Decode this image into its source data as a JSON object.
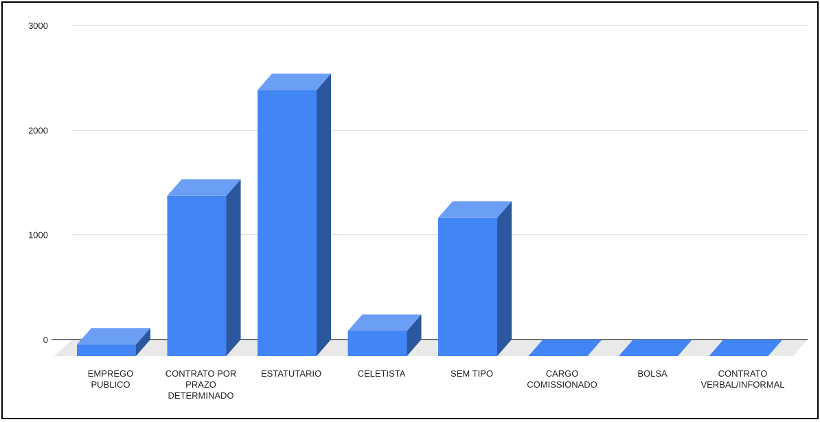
{
  "chart_data": {
    "type": "bar",
    "style": "3d",
    "categories": [
      [
        "EMPREGO",
        "PUBLICO"
      ],
      [
        "CONTRATO POR",
        "PRAZO",
        "DETERMINADO"
      ],
      [
        "ESTATUTARIO"
      ],
      [
        "CELETISTA"
      ],
      [
        "SEM TIPO"
      ],
      [
        "CARGO",
        "COMISSIONADO"
      ],
      [
        "BOLSA"
      ],
      [
        "CONTRATO",
        "VERBAL/INFORMAL"
      ]
    ],
    "values": [
      110,
      1530,
      2540,
      240,
      1320,
      0,
      0,
      0
    ],
    "ylim": [
      0,
      3000
    ],
    "yticks": [
      0,
      1000,
      2000,
      3000
    ],
    "grid": true,
    "colors": {
      "front": "#4285f4",
      "top": "#6b9ff6",
      "side": "#2b579f",
      "floor": "#e9e9e9",
      "gridline": "#d6d6d6",
      "axis": "#222222"
    }
  }
}
